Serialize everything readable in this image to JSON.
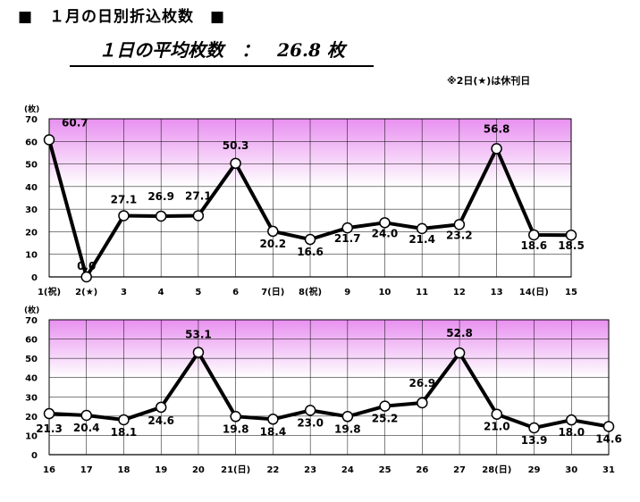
{
  "title": "■　１月の日別折込枚数　■",
  "subtitle": "１日の平均枚数　：　26.8 枚",
  "note": "※2日(★)は休刊日",
  "colors": {
    "band_top": "#e890f0",
    "band_bottom": "#ffffff",
    "line": "#000000",
    "marker_fill": "#ffffff"
  },
  "chart_data": [
    {
      "type": "line",
      "ylabel": "(枚)",
      "ylim": [
        0,
        70
      ],
      "yticks": [
        0,
        10,
        20,
        30,
        40,
        50,
        60,
        70
      ],
      "categories": [
        "1(祝)",
        "2(★)",
        "3",
        "4",
        "5",
        "6",
        "7(日)",
        "8(祝)",
        "9",
        "10",
        "11",
        "12",
        "13",
        "14(日)",
        "15"
      ],
      "values": [
        60.7,
        0.0,
        27.1,
        26.9,
        27.1,
        50.3,
        20.2,
        16.6,
        21.7,
        24.0,
        21.4,
        23.2,
        56.8,
        18.6,
        18.5
      ],
      "labels": [
        "60.7",
        "0.0",
        "27.1",
        "26.9",
        "27.1",
        "50.3",
        "20.2",
        "16.6",
        "21.7",
        "24.0",
        "21.4",
        "23.2",
        "56.8",
        "18.6",
        "18.5"
      ]
    },
    {
      "type": "line",
      "ylabel": "(枚)",
      "ylim": [
        0,
        70
      ],
      "yticks": [
        0,
        10,
        20,
        30,
        40,
        50,
        60,
        70
      ],
      "categories": [
        "16",
        "17",
        "18",
        "19",
        "20",
        "21(日)",
        "22",
        "23",
        "24",
        "25",
        "26",
        "27",
        "28(日)",
        "29",
        "30",
        "31"
      ],
      "values": [
        21.3,
        20.4,
        18.1,
        24.6,
        53.1,
        19.8,
        18.4,
        23.0,
        19.8,
        25.2,
        26.9,
        52.8,
        21.0,
        13.9,
        18.0,
        14.6
      ],
      "labels": [
        "21.3",
        "20.4",
        "18.1",
        "24.6",
        "53.1",
        "19.8",
        "18.4",
        "23.0",
        "19.8",
        "25.2",
        "26.9",
        "52.8",
        "21.0",
        "13.9",
        "18.0",
        "14.6"
      ]
    }
  ]
}
